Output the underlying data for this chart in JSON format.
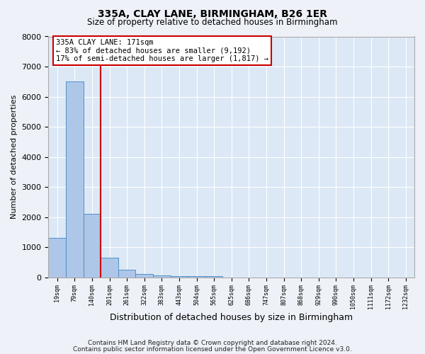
{
  "title": "335A, CLAY LANE, BIRMINGHAM, B26 1ER",
  "subtitle": "Size of property relative to detached houses in Birmingham",
  "xlabel": "Distribution of detached houses by size in Birmingham",
  "ylabel": "Number of detached properties",
  "footnote1": "Contains HM Land Registry data © Crown copyright and database right 2024.",
  "footnote2": "Contains public sector information licensed under the Open Government Licence v3.0.",
  "annotation_line1": "335A CLAY LANE: 171sqm",
  "annotation_line2": "← 83% of detached houses are smaller (9,192)",
  "annotation_line3": "17% of semi-detached houses are larger (1,817) →",
  "red_line_bin": 2,
  "bar_labels": [
    "19sqm",
    "79sqm",
    "140sqm",
    "201sqm",
    "261sqm",
    "322sqm",
    "383sqm",
    "443sqm",
    "504sqm",
    "565sqm",
    "625sqm",
    "686sqm",
    "747sqm",
    "807sqm",
    "868sqm",
    "929sqm",
    "990sqm",
    "1050sqm",
    "1111sqm",
    "1172sqm",
    "1232sqm"
  ],
  "bar_heights": [
    1300,
    6500,
    2100,
    650,
    250,
    100,
    75,
    50,
    50,
    50,
    0,
    0,
    0,
    0,
    0,
    0,
    0,
    0,
    0,
    0,
    0
  ],
  "bar_color": "#aec6e8",
  "bar_edge_color": "#5090c8",
  "red_line_color": "#cc0000",
  "background_color": "#eef2f8",
  "plot_bg_color": "#dce8f5",
  "annotation_box_facecolor": "#ffffff",
  "annotation_box_edgecolor": "#cc0000",
  "grid_color": "#ffffff",
  "ylim": [
    0,
    8000
  ],
  "yticks": [
    0,
    1000,
    2000,
    3000,
    4000,
    5000,
    6000,
    7000,
    8000
  ]
}
